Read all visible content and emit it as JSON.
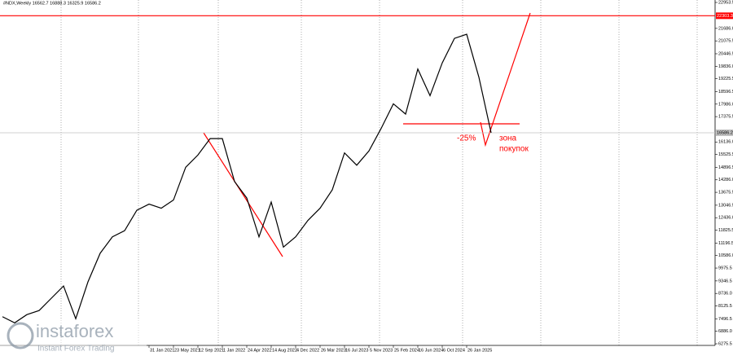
{
  "chart_data": {
    "type": "line",
    "title": "#NDX,Weekly  16562.7 16888.3 16325.9 16586.2",
    "color": "#000000",
    "categories": [
      null,
      null,
      null,
      null,
      null,
      null,
      null,
      null,
      null,
      null,
      null,
      null,
      "31 Jan 2021",
      null,
      "23 May 2021",
      null,
      "12 Sep 2021",
      null,
      "1 Jan 2022",
      null,
      "24 Apr 2022",
      null,
      "14 Aug 2022",
      null,
      "4 Dec 2022",
      null,
      "26 Mar 2023",
      null,
      "16 Jul 2023",
      null,
      "5 Nov 2023",
      null,
      "25 Feb 2024",
      null,
      "16 Jun 2024",
      null,
      "6 Oct 2024",
      null,
      "26 Jan 2025",
      null,
      null
    ],
    "values": [
      7600,
      7300,
      7700,
      7900,
      8500,
      9100,
      7500,
      9300,
      10700,
      11500,
      11800,
      12800,
      13100,
      12900,
      13300,
      14900,
      15500,
      16300,
      16300,
      14200,
      13400,
      11500,
      13200,
      11000,
      11500,
      12300,
      12900,
      13800,
      15600,
      15000,
      15700,
      16800,
      18000,
      17500,
      19700,
      18400,
      20000,
      21200,
      21400,
      19300,
      16586.2
    ],
    "ylim": [
      6196,
      23073
    ],
    "yticks": [
      22953.5,
      {
        "value": 21686,
        "label": "21686.0"
      },
      21075.5,
      20446.5,
      {
        "value": 19836,
        "label": "19836.0"
      },
      19225.5,
      18596.5,
      {
        "value": 17986,
        "label": "17986.0"
      },
      17375.5,
      {
        "value": 16136,
        "label": "16136.0"
      },
      15525.5,
      14896.5,
      {
        "value": 14286,
        "label": "14286.0"
      },
      13675.5,
      13046.5,
      {
        "value": 12436,
        "label": "12436.0"
      },
      11825.5,
      11196.5,
      {
        "value": 10586,
        "label": "10586.0"
      },
      9975.5,
      9346.5,
      {
        "value": 8736,
        "label": "8736.0"
      },
      8125.5,
      7496.5,
      {
        "value": 6886,
        "label": "6886.0"
      },
      6275.5
    ],
    "level_line": {
      "value": 22303.3,
      "color": "#ff0000"
    },
    "current_price": 16586.2,
    "annotations": [
      "-25%",
      "зона",
      "покупок"
    ]
  },
  "watermark": {
    "brand": "instaforex",
    "tagline": "Instant Forex Trading"
  }
}
